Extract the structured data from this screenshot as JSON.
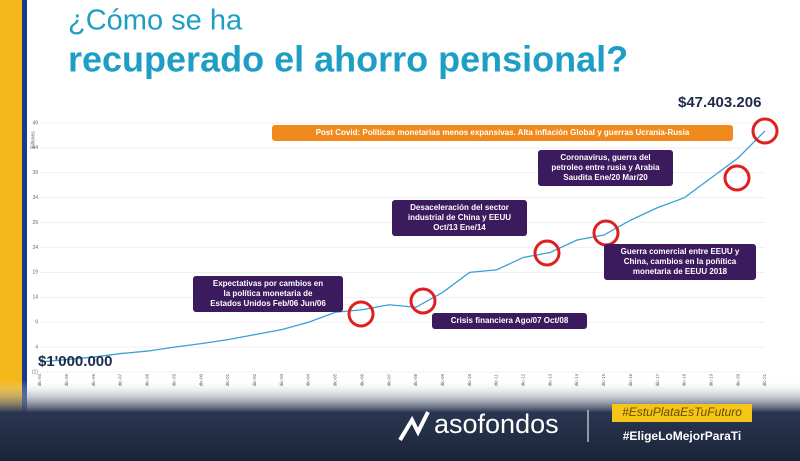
{
  "chart_data": {
    "type": "line",
    "title_lines": [
      "¿Cómo se ha",
      "recuperado el ahorro pensional?"
    ],
    "y_label": "Billones",
    "categories": [
      "dic-94",
      "dic-95",
      "dic-96",
      "dic-97",
      "dic-98",
      "dic-99",
      "dic-00",
      "dic-01",
      "dic-02",
      "dic-03",
      "dic-04",
      "dic-05",
      "dic-06",
      "dic-07",
      "dic-08",
      "dic-09",
      "dic-10",
      "dic-11",
      "dic-12",
      "dic-13",
      "dic-14",
      "dic-15",
      "dic-16",
      "dic-17",
      "dic-18",
      "dic-19",
      "dic-20",
      "dic-21"
    ],
    "series": [
      {
        "name": "Ahorro pensional",
        "color": "#3a9fd6",
        "values": [
          1,
          1.5,
          2,
          2.7,
          3.2,
          4,
          4.7,
          5.5,
          6.5,
          7.5,
          9,
          11,
          11.5,
          12.5,
          12,
          15,
          19,
          19.5,
          22,
          23,
          25.5,
          26.5,
          29.5,
          32,
          34,
          38,
          42,
          47.4
        ]
      }
    ],
    "ylim": [
      -1,
      49
    ],
    "yticks": [
      {
        "value": -1,
        "label": "(1)"
      },
      4,
      9,
      14,
      19,
      24,
      29,
      34,
      39,
      44,
      49
    ],
    "grid": true,
    "start_label": "$1'000.000",
    "end_label": "$47.403.206",
    "annotations": [
      {
        "color": "#f08a1c",
        "lines": [
          "Post Covid: Políticas monetarias menos expansivas. Alta inflación Global y guerras Ucrania-Rusia"
        ]
      },
      {
        "color": "#3b1a5e",
        "lines": [
          "Coronavirus, guerra del",
          "petroleo entre rusia y Arabia",
          "Saudita Ene/20 Mar/20"
        ]
      },
      {
        "color": "#3b1a5e",
        "lines": [
          "Desaceleración del sector",
          "industrial de China y EEUU",
          "Oct/13 Ene/14"
        ]
      },
      {
        "color": "#3b1a5e",
        "lines": [
          "Guerra comercial entre EEUU y",
          "China, cambios en la poñítica",
          "monetaria de EEUU 2018"
        ]
      },
      {
        "color": "#3b1a5e",
        "lines": [
          "Expectativas por cambios en",
          "la política monetaria de",
          "Estados Unidos Feb/06 Jun/06"
        ]
      },
      {
        "color": "#3b1a5e",
        "lines": [
          "Crisis financiera Ago/07 Oct/08"
        ]
      }
    ]
  },
  "footer": {
    "brand": "asofondos",
    "tag1": "#EstuPlataEsTuFuturo",
    "tag2": "#EligeLoMejorParaTi"
  }
}
